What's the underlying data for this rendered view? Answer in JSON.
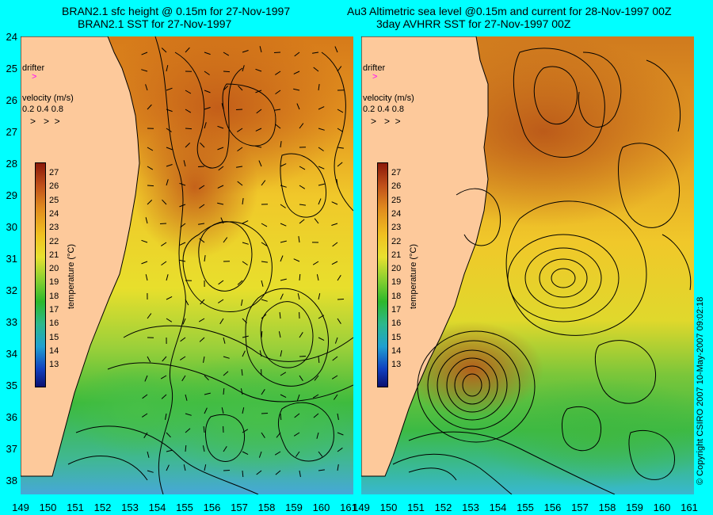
{
  "left_panel": {
    "title_line1": "BRAN2.1 sfc height @ 0.15m for 27-Nov-1997",
    "title_line2": "BRAN2.1 SST for 27-Nov-1997"
  },
  "right_panel": {
    "title_line1": "Au3 Altimetric sea level  @0.15m and current for 28-Nov-1997 00Z",
    "title_line2": "3day AVHRR SST for 27-Nov-1997 00Z"
  },
  "legend": {
    "drifter_label": "drifter",
    "velocity_title": "velocity (m/s)",
    "velocity_scale": "0.2 0.4 0.8",
    "colorbar_title": "temperature (°C)",
    "colorbar_ticks": [
      "27",
      "26",
      "25",
      "24",
      "23",
      "22",
      "21",
      "20",
      "19",
      "18",
      "17",
      "16",
      "15",
      "14",
      "13"
    ],
    "colors": {
      "drifter": "#ff00ff",
      "land": "#fdc99b",
      "background": "#00ffff"
    }
  },
  "axes": {
    "latitudes": [
      "24",
      "25",
      "26",
      "27",
      "28",
      "29",
      "30",
      "31",
      "32",
      "33",
      "34",
      "35",
      "36",
      "37",
      "38"
    ],
    "longitudes": [
      "149",
      "150",
      "151",
      "152",
      "153",
      "154",
      "155",
      "156",
      "157",
      "158",
      "159",
      "160",
      "161"
    ]
  },
  "copyright": "© Copyright CSIRO 2007   10-May-2007 09:02:18"
}
